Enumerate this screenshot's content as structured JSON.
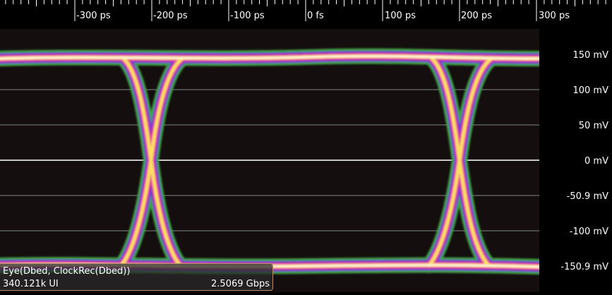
{
  "time_axis": {
    "labels": [
      "-300 ps",
      "-200 ps",
      "-100 ps",
      "0 fs",
      "100 ps",
      "200 ps",
      "300 ps"
    ]
  },
  "voltage_axis": {
    "labels": [
      "150 mV",
      "100 mV",
      "50 mV",
      "0 mV",
      "-50.9 mV",
      "-100 mV",
      "-150.9 mV"
    ]
  },
  "info": {
    "title": "Eye(Dbed, ClockRec(Dbed))",
    "ui_count": "340.121k UI",
    "bit_rate": "2.5069 Gbps"
  },
  "colors": {
    "background": "#140e0e",
    "gridline": "#4a4a4a",
    "zero_line": "#c8c8c8",
    "outer_glow": "#3fa33f",
    "mid_band": "#6a3bd8",
    "inner_band": "#e0309c",
    "core": "#ffe060",
    "hot_core": "#fff8e8"
  }
}
